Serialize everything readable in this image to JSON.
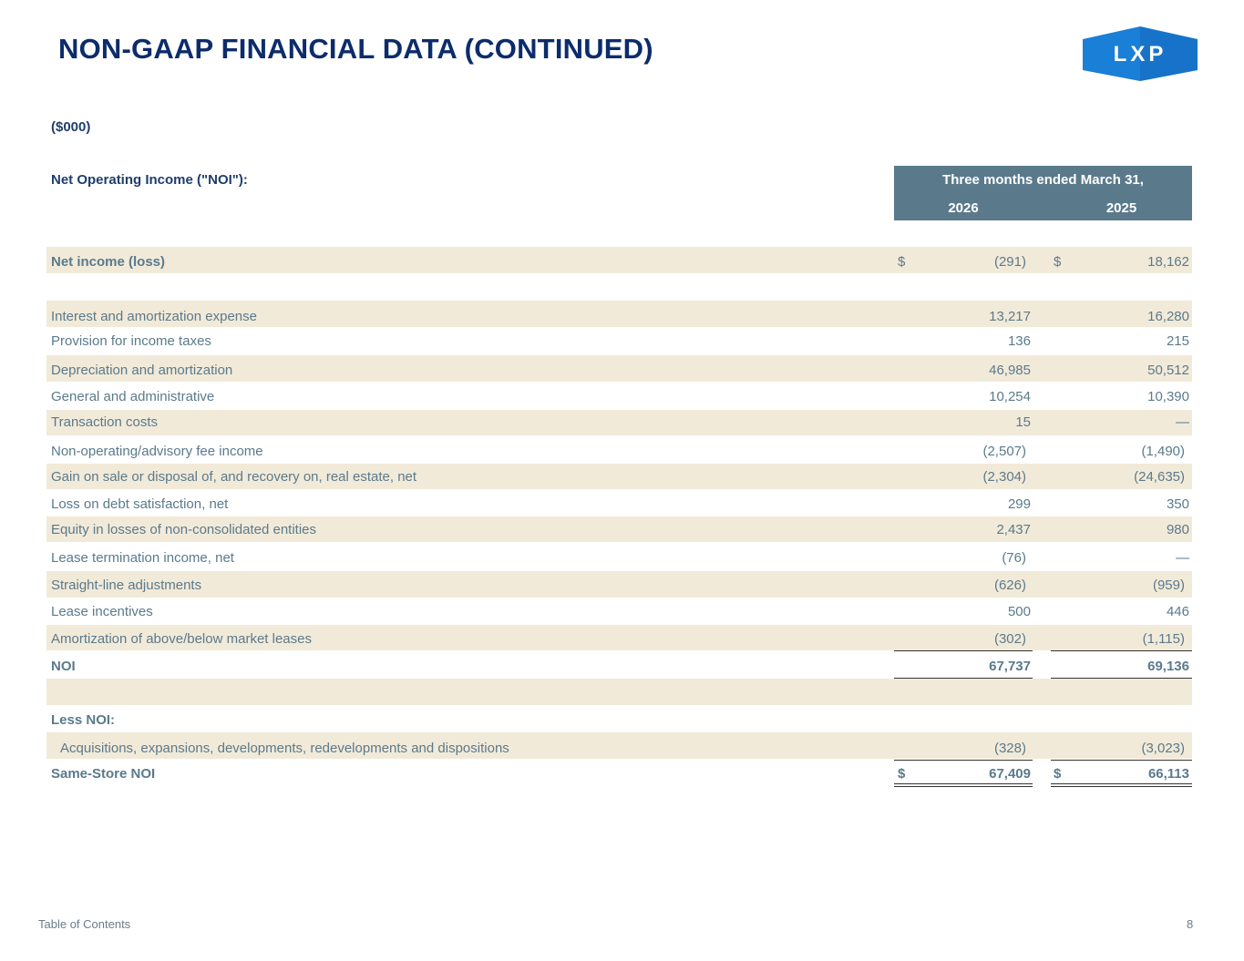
{
  "page": {
    "title": "NON-GAAP FINANCIAL DATA (CONTINUED)",
    "logo_text": "LXP",
    "units": "($000)",
    "section_label": "Net Operating Income (\"NOI\"):",
    "period_header": "Three months ended March 31,",
    "years": [
      "2026",
      "2025"
    ],
    "less_label": "Less NOI:"
  },
  "rows": {
    "net_income": {
      "label": "Net income (loss)",
      "cur": "$",
      "v1": "(291)",
      "v2": "18,162"
    },
    "interest": {
      "label": "Interest and amortization expense",
      "v1": "13,217",
      "v2": "16,280"
    },
    "taxes": {
      "label": "Provision for income taxes",
      "v1": "136",
      "v2": "215"
    },
    "depreciation": {
      "label": "Depreciation and amortization",
      "v1": "46,985",
      "v2": "50,512"
    },
    "ga": {
      "label": "General and administrative",
      "v1": "10,254",
      "v2": "10,390"
    },
    "transaction": {
      "label": "Transaction costs",
      "v1": "15",
      "v2": "—"
    },
    "fee_income": {
      "label": "Non-operating/advisory fee income",
      "v1": "(2,507)",
      "v2": "(1,490)"
    },
    "gain_sale": {
      "label": "Gain on sale or disposal of, and recovery on, real estate, net",
      "v1": "(2,304)",
      "v2": "(24,635)"
    },
    "debt": {
      "label": "Loss on debt satisfaction, net",
      "v1": "299",
      "v2": "350"
    },
    "equity": {
      "label": "Equity in losses of non-consolidated entities",
      "v1": "2,437",
      "v2": "980"
    },
    "lease_term": {
      "label": "Lease termination income, net",
      "v1": "(76)",
      "v2": "—"
    },
    "straight_line": {
      "label": "Straight-line adjustments",
      "v1": "(626)",
      "v2": "(959)"
    },
    "incentives": {
      "label": "Lease incentives",
      "v1": "500",
      "v2": "446"
    },
    "amortization": {
      "label": "Amortization of above/below market leases",
      "v1": "(302)",
      "v2": "(1,115)"
    },
    "noi": {
      "label": "NOI",
      "v1": "67,737",
      "v2": "69,136"
    },
    "acquisitions": {
      "label": "Acquisitions, expansions, developments, redevelopments and dispositions",
      "v1": "(328)",
      "v2": "(3,023)"
    },
    "same_store": {
      "label": "Same-Store NOI",
      "cur": "$",
      "v1": "67,409",
      "v2": "66,113"
    }
  },
  "footer": {
    "toc_link": "Table of Contents",
    "page_number": "8"
  },
  "colors": {
    "title": "#0c2c6b",
    "header_fill": "#5a7a8c",
    "row_shade": "#f2ead9",
    "logo_blue": "#1a7fd6"
  }
}
